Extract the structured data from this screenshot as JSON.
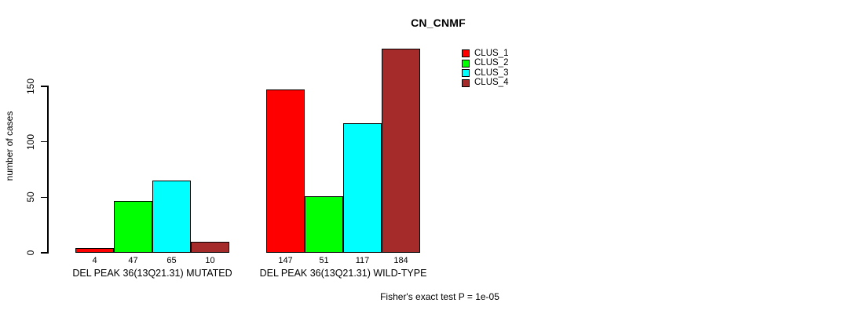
{
  "chart_data": {
    "type": "bar",
    "title": "CN_CNMF",
    "ylabel": "number of cases",
    "xlabel": "",
    "ylim": [
      0,
      150
    ],
    "yticks": [
      0,
      50,
      100,
      150
    ],
    "grid": false,
    "legend_position": "top-right",
    "groups": [
      "DEL PEAK 36(13Q21.31) MUTATED",
      "DEL PEAK 36(13Q21.31) WILD-TYPE"
    ],
    "series": [
      {
        "name": "CLUS_1",
        "color": "#FF0000",
        "values": [
          4,
          147
        ]
      },
      {
        "name": "CLUS_2",
        "color": "#00FF00",
        "values": [
          47,
          51
        ]
      },
      {
        "name": "CLUS_3",
        "color": "#00FFFF",
        "values": [
          65,
          117
        ]
      },
      {
        "name": "CLUS_4",
        "color": "#A52A2A",
        "values": [
          10,
          184
        ]
      }
    ],
    "bar_value_labels": [
      [
        4,
        47,
        65,
        10
      ],
      [
        147,
        51,
        117,
        184
      ]
    ],
    "annotation": "Fisher's exact test P = 1e-05"
  },
  "colors": {
    "axis": "#000000",
    "text": "#000000",
    "background": "#FFFFFF"
  }
}
